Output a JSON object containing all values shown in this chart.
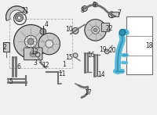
{
  "bg_color": "#f0f0f0",
  "border_color": "#cccccc",
  "highlight_color": "#5ab8d8",
  "line_color": "#707070",
  "dark_color": "#303030",
  "gray1": "#c8c8c8",
  "gray2": "#a0a0a0",
  "gray3": "#e0e0e0",
  "label_color": "#222222",
  "figsize": [
    2.0,
    1.47
  ],
  "dpi": 100
}
